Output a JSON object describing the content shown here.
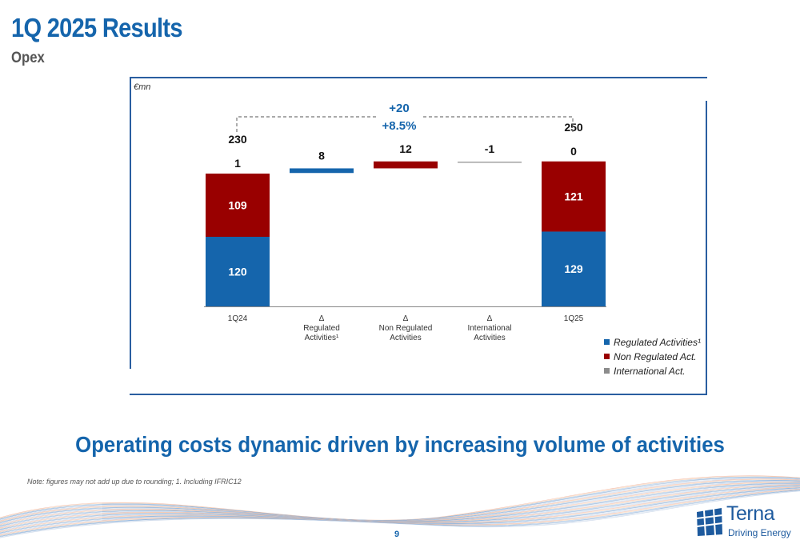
{
  "header": {
    "title": "1Q 2025 Results",
    "subtitle": "Opex"
  },
  "chart": {
    "unit": "€mn",
    "bridge_abs": "+20",
    "bridge_pct": "+8.5%",
    "colors": {
      "regulated": "#1565ac",
      "non_regulated": "#990000",
      "international": "#8c8c8c"
    }
  },
  "chart_data": {
    "type": "bar",
    "subtype": "waterfall",
    "unit": "€mn",
    "categories": [
      "1Q24",
      "Δ Regulated Activities¹",
      "Δ Non Regulated Activities",
      "Δ International Activities",
      "1Q25"
    ],
    "category_lines": [
      [
        "1Q24"
      ],
      [
        "Δ",
        "Regulated",
        "Activities¹"
      ],
      [
        "Δ",
        "Non Regulated",
        "Activities"
      ],
      [
        "Δ",
        "International",
        "Activities"
      ],
      [
        "1Q25"
      ]
    ],
    "series": [
      {
        "name": "Regulated Activities¹",
        "values": [
          120,
          8,
          null,
          null,
          129
        ]
      },
      {
        "name": "Non Regulated Act.",
        "values": [
          109,
          null,
          12,
          null,
          121
        ]
      },
      {
        "name": "International Act.",
        "values": [
          1,
          null,
          null,
          -1,
          0
        ]
      }
    ],
    "totals": [
      230,
      null,
      null,
      null,
      250
    ],
    "total_labels": [
      "230",
      "",
      "",
      "",
      "250"
    ],
    "delta_labels": [
      "",
      "8",
      "12",
      "-1",
      ""
    ],
    "segment_labels": [
      [
        "120",
        "109",
        "1"
      ],
      [
        "",
        "",
        ""
      ],
      [
        "",
        "",
        ""
      ],
      [
        "",
        "",
        ""
      ],
      [
        "129",
        "121",
        "0"
      ]
    ],
    "legend_position": "bottom-right"
  },
  "legend": [
    {
      "label": "Regulated Activities¹",
      "color": "#1565ac"
    },
    {
      "label": "Non Regulated Act.",
      "color": "#990000"
    },
    {
      "label": "International Act.",
      "color": "#8c8c8c"
    }
  ],
  "headline": "Operating costs dynamic driven by increasing volume of activities",
  "footer": {
    "note": "Note: figures may not add up due to rounding; 1. Including IFRIC12",
    "page": "9",
    "logo_brand": "Terna",
    "logo_tagline": "Driving Energy"
  }
}
